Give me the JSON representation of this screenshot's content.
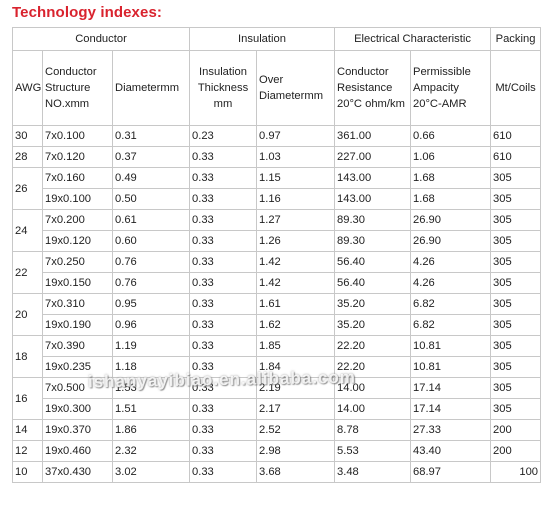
{
  "heading": "Technology indexes:",
  "groups": {
    "conductor": "Conductor",
    "insulation": "Insulation",
    "electrical": "Electrical Characteristic",
    "packing": "Packing"
  },
  "columns": {
    "awg": "AWG",
    "structure": "Conductor Structure NO.xmm",
    "diameter": "Diametermm",
    "thickness": "Insulation Thickness mm",
    "over_diameter": "Over Diametermm",
    "resistance": "Conductor Resistance 20°C ohm/km",
    "ampacity": "Permissible Ampacity 20°C-AMR",
    "packing": "Mt/Coils"
  },
  "rows": [
    {
      "awg": "30",
      "structure": "7x0.100",
      "diameter": "0.31",
      "thickness": "0.23",
      "over": "0.97",
      "resistance": "361.00",
      "ampacity": "0.66",
      "packing": "610"
    },
    {
      "awg": "28",
      "structure": "7x0.120",
      "diameter": "0.37",
      "thickness": "0.33",
      "over": "1.03",
      "resistance": "227.00",
      "ampacity": "1.06",
      "packing": "610"
    },
    {
      "awg": "26",
      "structure": "7x0.160",
      "diameter": "0.49",
      "thickness": "0.33",
      "over": "1.15",
      "resistance": "143.00",
      "ampacity": "1.68",
      "packing": "305"
    },
    {
      "awg": "",
      "structure": "19x0.100",
      "diameter": "0.50",
      "thickness": "0.33",
      "over": "1.16",
      "resistance": "143.00",
      "ampacity": "1.68",
      "packing": "305"
    },
    {
      "awg": "24",
      "structure": "7x0.200",
      "diameter": "0.61",
      "thickness": "0.33",
      "over": "1.27",
      "resistance": "89.30",
      "ampacity": "26.90",
      "packing": "305"
    },
    {
      "awg": "",
      "structure": "19x0.120",
      "diameter": "0.60",
      "thickness": "0.33",
      "over": "1.26",
      "resistance": "89.30",
      "ampacity": "26.90",
      "packing": "305"
    },
    {
      "awg": "22",
      "structure": "7x0.250",
      "diameter": "0.76",
      "thickness": "0.33",
      "over": "1.42",
      "resistance": "56.40",
      "ampacity": "4.26",
      "packing": "305"
    },
    {
      "awg": "",
      "structure": "19x0.150",
      "diameter": "0.76",
      "thickness": "0.33",
      "over": "1.42",
      "resistance": "56.40",
      "ampacity": "4.26",
      "packing": "305"
    },
    {
      "awg": "20",
      "structure": "7x0.310",
      "diameter": "0.95",
      "thickness": "0.33",
      "over": "1.61",
      "resistance": "35.20",
      "ampacity": "6.82",
      "packing": "305"
    },
    {
      "awg": "",
      "structure": "19x0.190",
      "diameter": "0.96",
      "thickness": "0.33",
      "over": "1.62",
      "resistance": "35.20",
      "ampacity": "6.82",
      "packing": "305"
    },
    {
      "awg": "18",
      "structure": "7x0.390",
      "diameter": "1.19",
      "thickness": "0.33",
      "over": "1.85",
      "resistance": "22.20",
      "ampacity": "10.81",
      "packing": "305"
    },
    {
      "awg": "",
      "structure": "19x0.235",
      "diameter": "1.18",
      "thickness": "0.33",
      "over": "1.84",
      "resistance": "22.20",
      "ampacity": "10.81",
      "packing": "305"
    },
    {
      "awg": "16",
      "structure": "7x0.500",
      "diameter": "1.53",
      "thickness": "0.33",
      "over": "2.19",
      "resistance": "14.00",
      "ampacity": "17.14",
      "packing": "305"
    },
    {
      "awg": "",
      "structure": "19x0.300",
      "diameter": "1.51",
      "thickness": "0.33",
      "over": "2.17",
      "resistance": "14.00",
      "ampacity": "17.14",
      "packing": "305"
    },
    {
      "awg": "14",
      "structure": "19x0.370",
      "diameter": "1.86",
      "thickness": "0.33",
      "over": "2.52",
      "resistance": "8.78",
      "ampacity": "27.33",
      "packing": "200"
    },
    {
      "awg": "12",
      "structure": "19x0.460",
      "diameter": "2.32",
      "thickness": "0.33",
      "over": "2.98",
      "resistance": "5.53",
      "ampacity": "43.40",
      "packing": "200"
    },
    {
      "awg": "10",
      "structure": "37x0.430",
      "diameter": "3.02",
      "thickness": "0.33",
      "over": "3.68",
      "resistance": "3.48",
      "ampacity": "68.97",
      "packing": "100"
    }
  ],
  "watermark": "ishanyayibiao.en.alibaba.com"
}
